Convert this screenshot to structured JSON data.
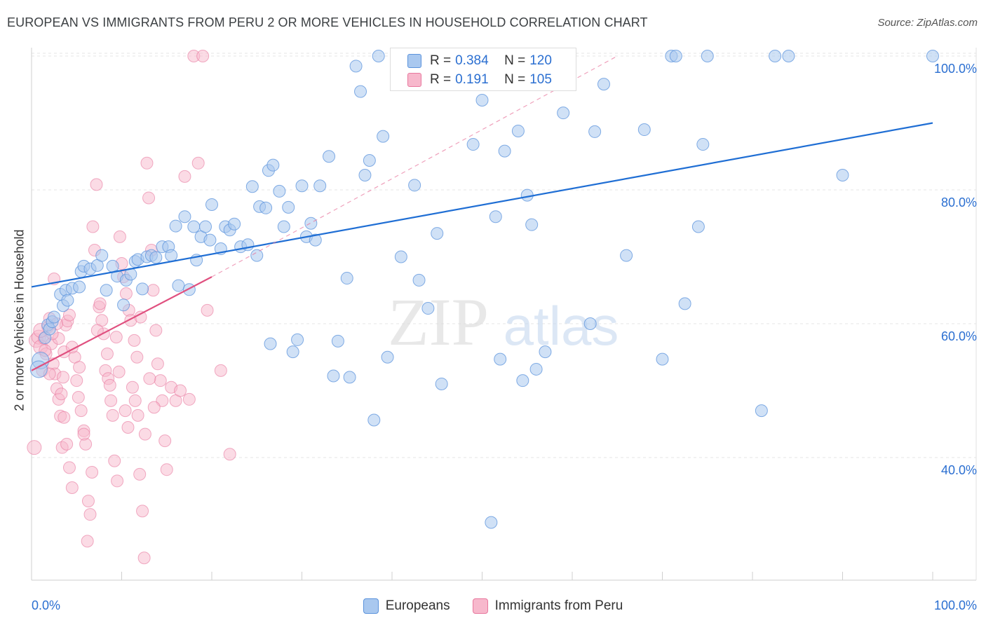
{
  "title": "EUROPEAN VS IMMIGRANTS FROM PERU 2 OR MORE VEHICLES IN HOUSEHOLD CORRELATION CHART",
  "source": "Source: ZipAtlas.com",
  "watermark": {
    "zip": "ZIP",
    "atlas": "atlas"
  },
  "colors": {
    "blue_fill": "#a9c8ef",
    "blue_stroke": "#5b93dc",
    "blue_line": "#1f6ed4",
    "pink_fill": "#f7b8cc",
    "pink_stroke": "#e8789e",
    "pink_line": "#e0507f",
    "tick_text": "#2b6fd1",
    "grid": "#e6e6e6"
  },
  "legend": {
    "rows": [
      {
        "r_label": "R =",
        "r_value": "0.384",
        "n_label": "N =",
        "n_value": "120"
      },
      {
        "r_label": "R =",
        "r_value": "0.191",
        "n_label": "N =",
        "n_value": "105"
      }
    ]
  },
  "bottom_legend": {
    "europeans": "Europeans",
    "peru": "Immigrants from Peru"
  },
  "chart_data": {
    "type": "scatter",
    "ylabel": "2 or more Vehicles in Household",
    "xlabel": "",
    "x_tick_labels": {
      "left": "0.0%",
      "right": "100.0%"
    },
    "y_tick_labels": [
      "100.0%",
      "80.0%",
      "60.0%",
      "40.0%"
    ],
    "y_ticks": [
      100,
      80,
      60,
      40
    ],
    "xlim": [
      0,
      100
    ],
    "ylim": [
      21.5,
      103
    ],
    "grid": "horizontal-dashed",
    "legend_placement": "top-center",
    "series": [
      {
        "name": "Europeans",
        "color": "#5b93dc",
        "trend": {
          "x": [
            0,
            100
          ],
          "y": [
            65.5,
            90.0
          ]
        },
        "points": [
          [
            1.0,
            54.5
          ],
          [
            0.8,
            53.2
          ],
          [
            1.5,
            57.9
          ],
          [
            1.8,
            59.8
          ],
          [
            2.0,
            59.2
          ],
          [
            2.3,
            60.3
          ],
          [
            2.5,
            61.0
          ],
          [
            3.5,
            62.7
          ],
          [
            3.2,
            64.4
          ],
          [
            3.8,
            65.0
          ],
          [
            4.5,
            65.3
          ],
          [
            5.3,
            65.5
          ],
          [
            4.0,
            63.5
          ],
          [
            5.5,
            67.8
          ],
          [
            5.8,
            68.6
          ],
          [
            6.5,
            68.2
          ],
          [
            7.3,
            68.7
          ],
          [
            7.8,
            70.2
          ],
          [
            8.3,
            65.0
          ],
          [
            9.5,
            67.1
          ],
          [
            9.0,
            68.6
          ],
          [
            10.2,
            62.8
          ],
          [
            10.5,
            66.5
          ],
          [
            11.0,
            67.4
          ],
          [
            11.5,
            69.3
          ],
          [
            11.8,
            69.6
          ],
          [
            12.3,
            65.2
          ],
          [
            12.8,
            70.0
          ],
          [
            13.3,
            70.2
          ],
          [
            13.8,
            69.9
          ],
          [
            14.5,
            71.5
          ],
          [
            15.2,
            71.5
          ],
          [
            15.5,
            70.2
          ],
          [
            16.0,
            74.6
          ],
          [
            16.3,
            65.7
          ],
          [
            17.0,
            76.0
          ],
          [
            17.5,
            65.1
          ],
          [
            18.0,
            74.5
          ],
          [
            18.3,
            69.5
          ],
          [
            18.8,
            73.0
          ],
          [
            19.3,
            74.5
          ],
          [
            19.8,
            72.5
          ],
          [
            20.0,
            77.8
          ],
          [
            21.0,
            71.2
          ],
          [
            21.5,
            74.5
          ],
          [
            22.0,
            74.0
          ],
          [
            22.5,
            74.9
          ],
          [
            23.2,
            71.5
          ],
          [
            24.0,
            71.8
          ],
          [
            24.5,
            80.5
          ],
          [
            25.0,
            70.2
          ],
          [
            25.3,
            77.5
          ],
          [
            26.0,
            77.3
          ],
          [
            26.3,
            82.9
          ],
          [
            26.8,
            83.7
          ],
          [
            26.5,
            57.0
          ],
          [
            27.5,
            79.8
          ],
          [
            28.0,
            74.5
          ],
          [
            28.5,
            77.4
          ],
          [
            29.0,
            55.8
          ],
          [
            29.5,
            57.6
          ],
          [
            30.0,
            80.6
          ],
          [
            30.5,
            73.0
          ],
          [
            31.0,
            75.0
          ],
          [
            31.5,
            72.5
          ],
          [
            32.0,
            80.6
          ],
          [
            33.0,
            85.0
          ],
          [
            33.5,
            52.2
          ],
          [
            34.0,
            57.4
          ],
          [
            35.0,
            66.8
          ],
          [
            35.3,
            52.0
          ],
          [
            36.0,
            98.5
          ],
          [
            36.5,
            94.7
          ],
          [
            37.0,
            82.2
          ],
          [
            37.5,
            84.4
          ],
          [
            38.0,
            45.6
          ],
          [
            38.5,
            100.0
          ],
          [
            39.0,
            88.0
          ],
          [
            39.5,
            55.0
          ],
          [
            41.0,
            70.0
          ],
          [
            42.0,
            100.0
          ],
          [
            42.5,
            80.7
          ],
          [
            43.0,
            66.5
          ],
          [
            44.0,
            62.3
          ],
          [
            45.0,
            73.5
          ],
          [
            45.5,
            51.0
          ],
          [
            46.0,
            100.0
          ],
          [
            47.0,
            97.5
          ],
          [
            48.0,
            100.0
          ],
          [
            49.0,
            86.8
          ],
          [
            50.0,
            93.4
          ],
          [
            51.0,
            30.3
          ],
          [
            51.5,
            76.0
          ],
          [
            52.0,
            54.7
          ],
          [
            52.5,
            85.8
          ],
          [
            53.0,
            100.0
          ],
          [
            54.0,
            88.8
          ],
          [
            54.5,
            51.5
          ],
          [
            55.0,
            79.2
          ],
          [
            55.5,
            74.8
          ],
          [
            56.0,
            53.2
          ],
          [
            57.0,
            55.8
          ],
          [
            59.0,
            91.5
          ],
          [
            62.0,
            60.0
          ],
          [
            62.5,
            88.7
          ],
          [
            63.5,
            95.8
          ],
          [
            66.0,
            70.2
          ],
          [
            68.0,
            89.0
          ],
          [
            70.0,
            54.7
          ],
          [
            71.0,
            100.0
          ],
          [
            71.5,
            100.0
          ],
          [
            72.5,
            63.0
          ],
          [
            74.0,
            74.5
          ],
          [
            74.5,
            86.8
          ],
          [
            75.0,
            100.0
          ],
          [
            81.0,
            47.0
          ],
          [
            82.5,
            100.0
          ],
          [
            84.0,
            100.0
          ],
          [
            90.0,
            82.2
          ],
          [
            100.0,
            100.0
          ]
        ]
      },
      {
        "name": "Immigrants from Peru",
        "color": "#e8789e",
        "trend": {
          "x": [
            0,
            20
          ],
          "y": [
            53.0,
            67.0
          ],
          "dashed_x": [
            20,
            65
          ],
          "dashed_y": [
            67.0,
            100.0
          ]
        },
        "points": [
          [
            0.3,
            41.5
          ],
          [
            0.5,
            57.5
          ],
          [
            0.8,
            58.0
          ],
          [
            1.0,
            56.5
          ],
          [
            1.2,
            53.0
          ],
          [
            1.4,
            57.8
          ],
          [
            1.6,
            55.5
          ],
          [
            1.8,
            59.5
          ],
          [
            2.0,
            60.8
          ],
          [
            2.2,
            57.0
          ],
          [
            2.4,
            54.0
          ],
          [
            2.6,
            52.5
          ],
          [
            2.8,
            50.3
          ],
          [
            3.0,
            48.7
          ],
          [
            3.2,
            46.2
          ],
          [
            3.4,
            41.5
          ],
          [
            3.6,
            55.8
          ],
          [
            3.8,
            59.8
          ],
          [
            4.0,
            60.4
          ],
          [
            4.2,
            61.3
          ],
          [
            2.5,
            66.7
          ],
          [
            2.8,
            60.0
          ],
          [
            3.0,
            57.8
          ],
          [
            3.3,
            49.5
          ],
          [
            3.6,
            46.0
          ],
          [
            3.9,
            42.0
          ],
          [
            4.2,
            38.5
          ],
          [
            4.5,
            35.5
          ],
          [
            4.8,
            55.0
          ],
          [
            5.0,
            51.5
          ],
          [
            5.3,
            53.5
          ],
          [
            5.5,
            47.0
          ],
          [
            5.8,
            44.0
          ],
          [
            6.0,
            42.0
          ],
          [
            6.3,
            33.5
          ],
          [
            6.5,
            31.5
          ],
          [
            6.8,
            74.5
          ],
          [
            7.0,
            71.0
          ],
          [
            7.2,
            80.8
          ],
          [
            7.5,
            62.5
          ],
          [
            7.8,
            60.5
          ],
          [
            8.0,
            58.5
          ],
          [
            8.2,
            53.0
          ],
          [
            8.5,
            51.8
          ],
          [
            8.8,
            48.5
          ],
          [
            9.0,
            46.3
          ],
          [
            9.2,
            39.5
          ],
          [
            9.5,
            36.5
          ],
          [
            9.8,
            73.0
          ],
          [
            10.0,
            69.0
          ],
          [
            10.2,
            67.0
          ],
          [
            10.5,
            64.5
          ],
          [
            10.8,
            62.0
          ],
          [
            11.0,
            60.5
          ],
          [
            11.2,
            50.5
          ],
          [
            11.5,
            48.5
          ],
          [
            11.8,
            46.3
          ],
          [
            12.0,
            37.5
          ],
          [
            12.3,
            32.0
          ],
          [
            12.5,
            25.0
          ],
          [
            12.8,
            84.0
          ],
          [
            13.0,
            78.8
          ],
          [
            13.3,
            71.0
          ],
          [
            13.5,
            65.0
          ],
          [
            13.8,
            59.0
          ],
          [
            14.0,
            54.0
          ],
          [
            14.3,
            51.5
          ],
          [
            14.5,
            48.5
          ],
          [
            14.8,
            42.5
          ],
          [
            15.0,
            38.2
          ],
          [
            15.5,
            50.5
          ],
          [
            16.0,
            48.5
          ],
          [
            16.5,
            50.0
          ],
          [
            17.0,
            82.0
          ],
          [
            17.5,
            48.7
          ],
          [
            18.0,
            100.0
          ],
          [
            18.5,
            84.0
          ],
          [
            19.0,
            100.0
          ],
          [
            19.5,
            62.0
          ],
          [
            21.0,
            53.0
          ],
          [
            22.0,
            40.5
          ],
          [
            1.0,
            59.0
          ],
          [
            1.5,
            56.0
          ],
          [
            2.0,
            52.5
          ],
          [
            2.3,
            58.5
          ],
          [
            3.5,
            52.0
          ],
          [
            4.5,
            56.5
          ],
          [
            5.2,
            49.0
          ],
          [
            5.8,
            43.5
          ],
          [
            6.2,
            27.5
          ],
          [
            6.7,
            37.8
          ],
          [
            7.3,
            59.0
          ],
          [
            7.6,
            63.0
          ],
          [
            8.4,
            55.5
          ],
          [
            8.7,
            50.8
          ],
          [
            9.4,
            58.0
          ],
          [
            9.7,
            52.8
          ],
          [
            10.4,
            47.0
          ],
          [
            10.7,
            44.5
          ],
          [
            11.4,
            57.5
          ],
          [
            11.7,
            55.0
          ],
          [
            12.1,
            61.0
          ],
          [
            12.6,
            43.5
          ],
          [
            13.1,
            51.8
          ],
          [
            13.6,
            47.5
          ]
        ]
      }
    ]
  }
}
